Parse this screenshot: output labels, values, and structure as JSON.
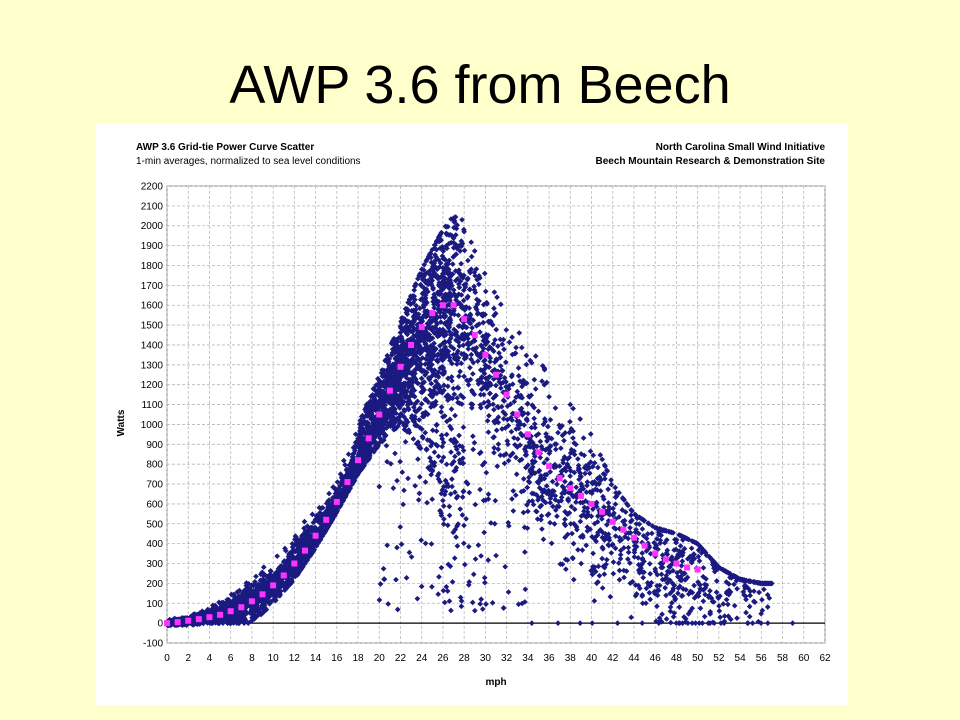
{
  "slide": {
    "title": "AWP 3.6 from Beech"
  },
  "chart_data": {
    "type": "scatter",
    "title": "AWP 3.6 Grid-tie Power Curve Scatter",
    "subtitle": "1-min averages, normalized to sea level conditions",
    "source_line1": "North Carolina Small Wind Initiative",
    "source_line2": "Beech Mountain Research & Demonstration Site",
    "xlabel": "mph",
    "ylabel": "Watts",
    "xlim": [
      0,
      62
    ],
    "ylim": [
      -100,
      2200
    ],
    "xticks": [
      0,
      2,
      4,
      6,
      8,
      10,
      12,
      14,
      16,
      18,
      20,
      22,
      24,
      26,
      28,
      30,
      32,
      34,
      36,
      38,
      40,
      42,
      44,
      46,
      48,
      50,
      52,
      54,
      56,
      58,
      60,
      62
    ],
    "yticks": [
      -100,
      0,
      100,
      200,
      300,
      400,
      500,
      600,
      700,
      800,
      900,
      1000,
      1100,
      1200,
      1300,
      1400,
      1500,
      1600,
      1700,
      1800,
      1900,
      2000,
      2100,
      2200
    ],
    "grid": true,
    "colors": {
      "scatter": "#1a1a80",
      "binned": "#ff33ff"
    },
    "series": [
      {
        "kind": "scatter-cloud",
        "upper_envelope": {
          "x": [
            0,
            2,
            4,
            6,
            8,
            10,
            12,
            14,
            16,
            18,
            20,
            22,
            24,
            26,
            27,
            28,
            30,
            32,
            34,
            36,
            38,
            40,
            42,
            44,
            46,
            48,
            50,
            52,
            54,
            56
          ],
          "y": [
            20,
            40,
            90,
            150,
            220,
            330,
            460,
            620,
            790,
            1000,
            1250,
            1520,
            1780,
            1980,
            2050,
            2080,
            1750,
            1550,
            1400,
            1250,
            1100,
            950,
            700,
            550,
            480,
            450,
            400,
            280,
            220,
            200
          ]
        },
        "lower_envelope": {
          "x": [
            0,
            2,
            4,
            6,
            8,
            10,
            12,
            14,
            16,
            18,
            20,
            22,
            24,
            26,
            28,
            30,
            32,
            34,
            36,
            38,
            40,
            42,
            44,
            46,
            48,
            50,
            52,
            54,
            56
          ],
          "y": [
            -10,
            -10,
            0,
            0,
            0,
            100,
            220,
            380,
            560,
            750,
            900,
            1000,
            850,
            500,
            300,
            200,
            100,
            80,
            60,
            60,
            50,
            30,
            20,
            10,
            0,
            0,
            0,
            0,
            0
          ]
        }
      },
      {
        "kind": "binned-average",
        "x": [
          0,
          1,
          2,
          3,
          4,
          5,
          6,
          7,
          8,
          9,
          10,
          11,
          12,
          13,
          14,
          15,
          16,
          17,
          18,
          19,
          20,
          21,
          22,
          23,
          24,
          25,
          26,
          27,
          28,
          29,
          30,
          31,
          32,
          33,
          34,
          35,
          36,
          37,
          38,
          39,
          40,
          41,
          42,
          43,
          44,
          45,
          46,
          47,
          48,
          49,
          50
        ],
        "y": [
          0,
          5,
          12,
          20,
          30,
          42,
          60,
          80,
          110,
          145,
          190,
          240,
          300,
          365,
          440,
          520,
          610,
          710,
          820,
          930,
          1050,
          1170,
          1290,
          1400,
          1490,
          1560,
          1600,
          1600,
          1530,
          1450,
          1350,
          1250,
          1150,
          1050,
          950,
          860,
          790,
          730,
          680,
          640,
          600,
          560,
          510,
          470,
          430,
          390,
          350,
          320,
          300,
          280,
          270
        ]
      }
    ],
    "zero_speed_dots_x": [
      34,
      36,
      38,
      40,
      42,
      44,
      46,
      48,
      50,
      52,
      54,
      56,
      58,
      60
    ]
  }
}
